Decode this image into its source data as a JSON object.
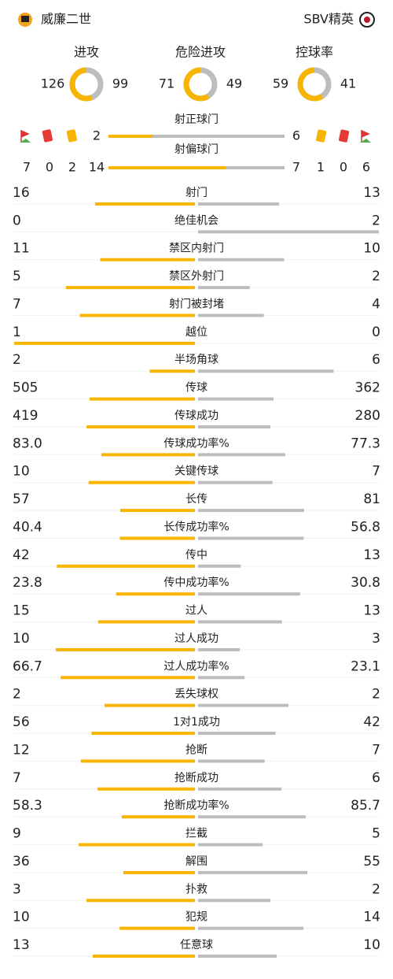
{
  "header": {
    "home_team": "威廉二世",
    "away_team": "SBV精英"
  },
  "rings": [
    {
      "label": "进攻",
      "home": 126,
      "away": 99
    },
    {
      "label": "危险进攻",
      "home": 71,
      "away": 49
    },
    {
      "label": "控球率",
      "home": 59,
      "away": 41
    }
  ],
  "shots": [
    {
      "label": "射正球门",
      "home": 2,
      "away": 6
    },
    {
      "label": "射偏球门",
      "home": 14,
      "away": 7
    }
  ],
  "cards": {
    "home": {
      "corners": 7,
      "red": 0,
      "yellow": 2
    },
    "away": {
      "yellow": 1,
      "red": 0,
      "corners": 6
    }
  },
  "stats": [
    {
      "label": "射门",
      "home": "16",
      "away": "13"
    },
    {
      "label": "绝佳机会",
      "home": "0",
      "away": "2"
    },
    {
      "label": "禁区内射门",
      "home": "11",
      "away": "10"
    },
    {
      "label": "禁区外射门",
      "home": "5",
      "away": "2"
    },
    {
      "label": "射门被封堵",
      "home": "7",
      "away": "4"
    },
    {
      "label": "越位",
      "home": "1",
      "away": "0"
    },
    {
      "label": "半场角球",
      "home": "2",
      "away": "6"
    },
    {
      "label": "传球",
      "home": "505",
      "away": "362"
    },
    {
      "label": "传球成功",
      "home": "419",
      "away": "280"
    },
    {
      "label": "传球成功率%",
      "home": "83.0",
      "away": "77.3"
    },
    {
      "label": "关键传球",
      "home": "10",
      "away": "7"
    },
    {
      "label": "长传",
      "home": "57",
      "away": "81"
    },
    {
      "label": "长传成功率%",
      "home": "40.4",
      "away": "56.8"
    },
    {
      "label": "传中",
      "home": "42",
      "away": "13"
    },
    {
      "label": "传中成功率%",
      "home": "23.8",
      "away": "30.8"
    },
    {
      "label": "过人",
      "home": "15",
      "away": "13"
    },
    {
      "label": "过人成功",
      "home": "10",
      "away": "3"
    },
    {
      "label": "过人成功率%",
      "home": "66.7",
      "away": "23.1"
    },
    {
      "label": "丢失球权",
      "home": "2",
      "away": "2"
    },
    {
      "label": "1对1成功",
      "home": "56",
      "away": "42"
    },
    {
      "label": "抢断",
      "home": "12",
      "away": "7"
    },
    {
      "label": "抢断成功",
      "home": "7",
      "away": "6"
    },
    {
      "label": "抢断成功率%",
      "home": "58.3",
      "away": "85.7"
    },
    {
      "label": "拦截",
      "home": "9",
      "away": "5"
    },
    {
      "label": "解围",
      "home": "36",
      "away": "55"
    },
    {
      "label": "扑救",
      "home": "3",
      "away": "2"
    },
    {
      "label": "犯规",
      "home": "10",
      "away": "14"
    },
    {
      "label": "任意球",
      "home": "13",
      "away": "10"
    }
  ]
}
